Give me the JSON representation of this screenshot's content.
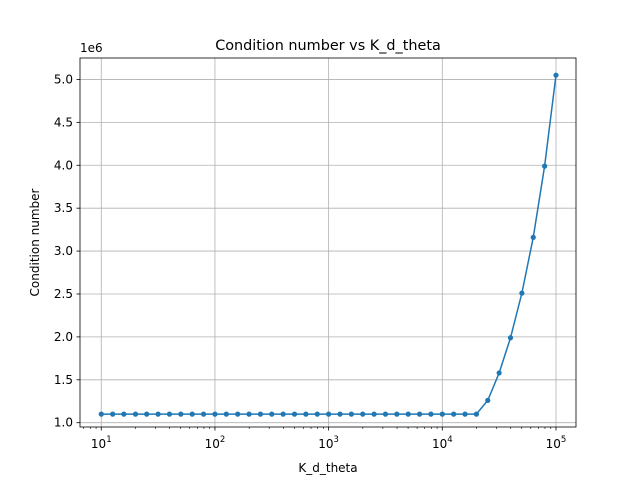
{
  "chart_data": {
    "type": "line",
    "title": "Condition number vs K_d_theta",
    "xlabel": "K_d_theta",
    "ylabel": "Condition number",
    "x_scale": "log",
    "xlim": [
      6.5,
      150000
    ],
    "ylim": [
      0.95,
      5.25
    ],
    "y_multiplier_label": "1e6",
    "grid": true,
    "x_ticks": [
      {
        "value": 10,
        "base": "10",
        "exp": "1"
      },
      {
        "value": 100,
        "base": "10",
        "exp": "2"
      },
      {
        "value": 1000,
        "base": "10",
        "exp": "3"
      },
      {
        "value": 10000,
        "base": "10",
        "exp": "4"
      },
      {
        "value": 100000,
        "base": "10",
        "exp": "5"
      }
    ],
    "y_ticks": [
      {
        "value": 1.0,
        "label": "1.0"
      },
      {
        "value": 1.5,
        "label": "1.5"
      },
      {
        "value": 2.0,
        "label": "2.0"
      },
      {
        "value": 2.5,
        "label": "2.5"
      },
      {
        "value": 3.0,
        "label": "3.0"
      },
      {
        "value": 3.5,
        "label": "3.5"
      },
      {
        "value": 4.0,
        "label": "4.0"
      },
      {
        "value": 4.5,
        "label": "4.5"
      },
      {
        "value": 5.0,
        "label": "5.0"
      }
    ],
    "colors": {
      "series": "#1f77b4",
      "grid": "#b0b0b0"
    },
    "series": [
      {
        "x": [
          10,
          12.6,
          15.8,
          20,
          25.1,
          31.6,
          39.8,
          50.1,
          63.1,
          79.4,
          100,
          125.9,
          158.5,
          199.5,
          251.2,
          316.2,
          398.1,
          501.2,
          631,
          794.3,
          1000,
          1258.9,
          1584.9,
          1995.3,
          2511.9,
          3162.3,
          3981.1,
          5011.9,
          6309.6,
          7943.3,
          10000,
          12589,
          15849,
          19953,
          25119,
          31623,
          39811,
          50119,
          63096,
          79433,
          100000
        ],
        "y": [
          1.1,
          1.1,
          1.1,
          1.1,
          1.1,
          1.1,
          1.1,
          1.1,
          1.1,
          1.1,
          1.1,
          1.1,
          1.1,
          1.1,
          1.1,
          1.1,
          1.1,
          1.1,
          1.1,
          1.1,
          1.1,
          1.1,
          1.1,
          1.1,
          1.1,
          1.1,
          1.1,
          1.1,
          1.1,
          1.1,
          1.1,
          1.1,
          1.1,
          1.1,
          1.26,
          1.58,
          1.99,
          2.51,
          3.16,
          3.99,
          5.05
        ]
      }
    ]
  }
}
